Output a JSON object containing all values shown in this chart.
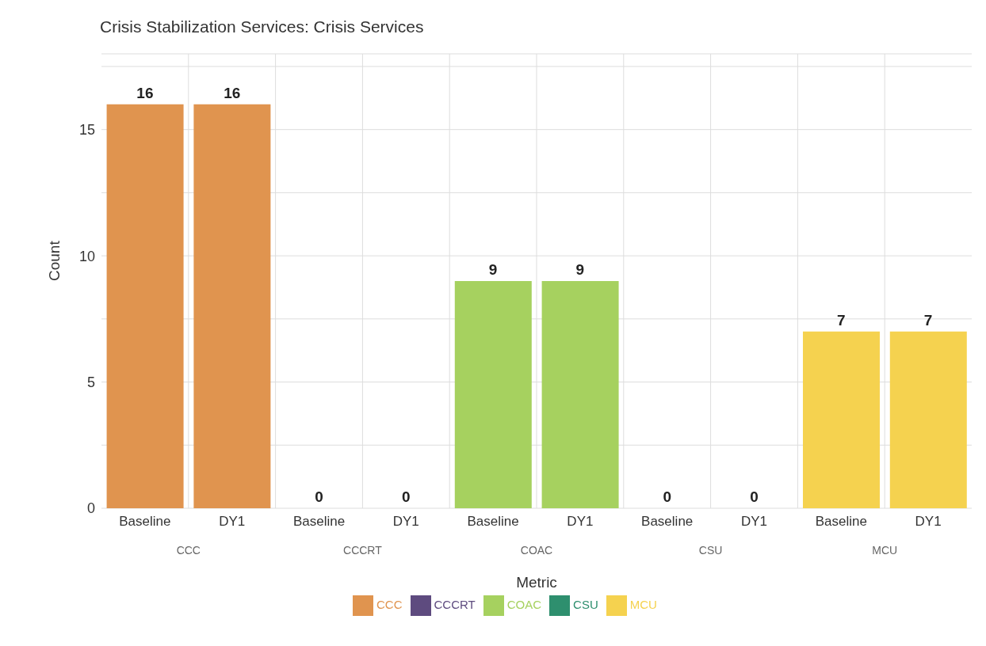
{
  "chart_data": {
    "type": "bar",
    "title": "Crisis Stabilization Services: Crisis Services",
    "xlabel": "Metric",
    "ylabel": "Count",
    "categories": [
      "Baseline",
      "DY1",
      "Baseline",
      "DY1",
      "Baseline",
      "DY1",
      "Baseline",
      "DY1",
      "Baseline",
      "DY1"
    ],
    "series": [
      {
        "name": "CCC",
        "color": "#e0944f",
        "values": [
          16,
          16,
          null,
          null,
          null,
          null,
          null,
          null,
          null,
          null
        ]
      },
      {
        "name": "CCCRT",
        "color": "#5e4b7f",
        "values": [
          null,
          null,
          0,
          0,
          null,
          null,
          null,
          null,
          null,
          null
        ]
      },
      {
        "name": "COAC",
        "color": "#a6d15f",
        "values": [
          null,
          null,
          null,
          null,
          9,
          9,
          null,
          null,
          null,
          null
        ]
      },
      {
        "name": "CSU",
        "color": "#2e8f6e",
        "values": [
          null,
          null,
          null,
          null,
          null,
          null,
          0,
          0,
          null,
          null
        ]
      },
      {
        "name": "MCU",
        "color": "#f5d24f",
        "values": [
          null,
          null,
          null,
          null,
          null,
          null,
          null,
          null,
          7,
          7
        ]
      }
    ],
    "stacked": true,
    "ylim": [
      0,
      18
    ],
    "yticks": [
      0,
      {
        "value": 2.5,
        "label": null
      },
      5,
      {
        "value": 7.5,
        "label": null
      },
      10,
      {
        "value": 12.5,
        "label": null
      },
      15,
      {
        "value": 17.5,
        "label": null
      }
    ],
    "grid": true,
    "data_labels": true,
    "legend": "bottom"
  }
}
